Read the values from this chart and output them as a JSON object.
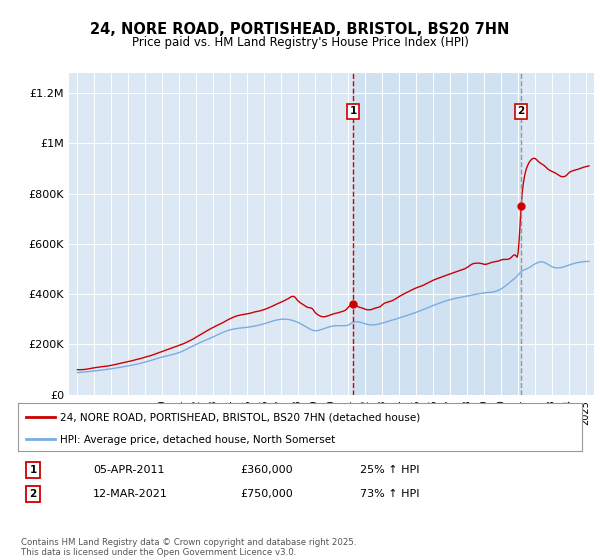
{
  "title": "24, NORE ROAD, PORTISHEAD, BRISTOL, BS20 7HN",
  "subtitle": "Price paid vs. HM Land Registry's House Price Index (HPI)",
  "ylabel_ticks": [
    "£0",
    "£200K",
    "£400K",
    "£600K",
    "£800K",
    "£1M",
    "£1.2M"
  ],
  "ytick_values": [
    0,
    200000,
    400000,
    600000,
    800000,
    1000000,
    1200000
  ],
  "ylim": [
    0,
    1280000
  ],
  "xlim_start": 1994.5,
  "xlim_end": 2025.5,
  "plot_bg_color": "#dce9f5",
  "shade_color": "#c8dcf0",
  "grid_color": "#ffffff",
  "red_line_color": "#cc0000",
  "blue_line_color": "#7aace0",
  "vline1_color": "#cc0000",
  "vline2_color": "#8899aa",
  "transaction1_x": 2011.27,
  "transaction2_x": 2021.2,
  "transaction1_price": 360000,
  "transaction2_price": 750000,
  "transaction1_label": "05-APR-2011",
  "transaction2_label": "12-MAR-2021",
  "transaction1_pct": "25% ↑ HPI",
  "transaction2_pct": "73% ↑ HPI",
  "legend_label_red": "24, NORE ROAD, PORTISHEAD, BRISTOL, BS20 7HN (detached house)",
  "legend_label_blue": "HPI: Average price, detached house, North Somerset",
  "copyright_text": "Contains HM Land Registry data © Crown copyright and database right 2025.\nThis data is licensed under the Open Government Licence v3.0."
}
